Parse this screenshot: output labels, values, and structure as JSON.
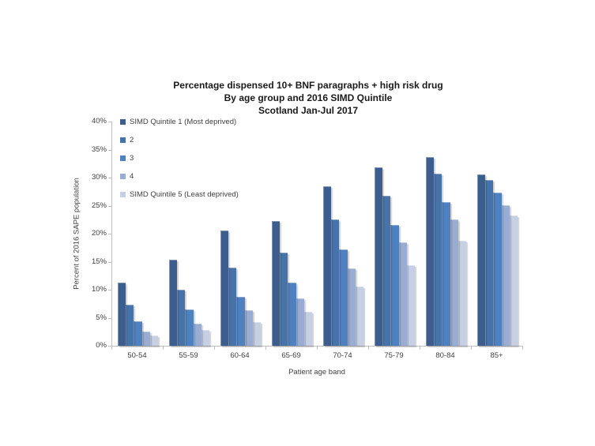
{
  "page": {
    "background": "#ffffff",
    "text_color": "#404040",
    "axis_color": "#BFBFBF"
  },
  "chart_data": {
    "type": "bar",
    "title_lines": [
      "Percentage dispensed 10+ BNF paragraphs + high risk drug",
      "By age group and 2016 SIMD Quintile",
      "Scotland Jan-Jul 2017"
    ],
    "xlabel": "Patient age band",
    "ylabel": "Percent of 2016 SAPE population",
    "ylim": [
      0,
      40
    ],
    "ytick_step": 5,
    "ytick_suffix": "%",
    "grid": false,
    "legend_position": "upper-left-inside",
    "categories": [
      "50-54",
      "55-59",
      "60-64",
      "65-69",
      "70-74",
      "75-79",
      "80-84",
      "85+"
    ],
    "series": [
      {
        "name": "SIMD Quintile 1 (Most deprived)",
        "color": "#3C5D8D",
        "values": [
          11.3,
          15.4,
          20.5,
          22.3,
          28.4,
          31.8,
          33.7,
          30.5
        ]
      },
      {
        "name": "2",
        "color": "#4674AA",
        "values": [
          7.3,
          10.0,
          13.9,
          16.6,
          22.6,
          26.7,
          30.7,
          29.6
        ]
      },
      {
        "name": "3",
        "color": "#4F80C0",
        "values": [
          4.4,
          6.5,
          8.8,
          11.2,
          17.2,
          21.5,
          25.7,
          27.3
        ]
      },
      {
        "name": "4",
        "color": "#99ACD3",
        "values": [
          2.6,
          4.0,
          6.3,
          8.5,
          13.8,
          18.5,
          22.6,
          25.1
        ]
      },
      {
        "name": "SIMD Quintile 5 (Least deprived)",
        "color": "#C6D0E5",
        "values": [
          1.8,
          2.8,
          4.2,
          6.1,
          10.5,
          14.4,
          18.7,
          23.3
        ]
      }
    ]
  }
}
